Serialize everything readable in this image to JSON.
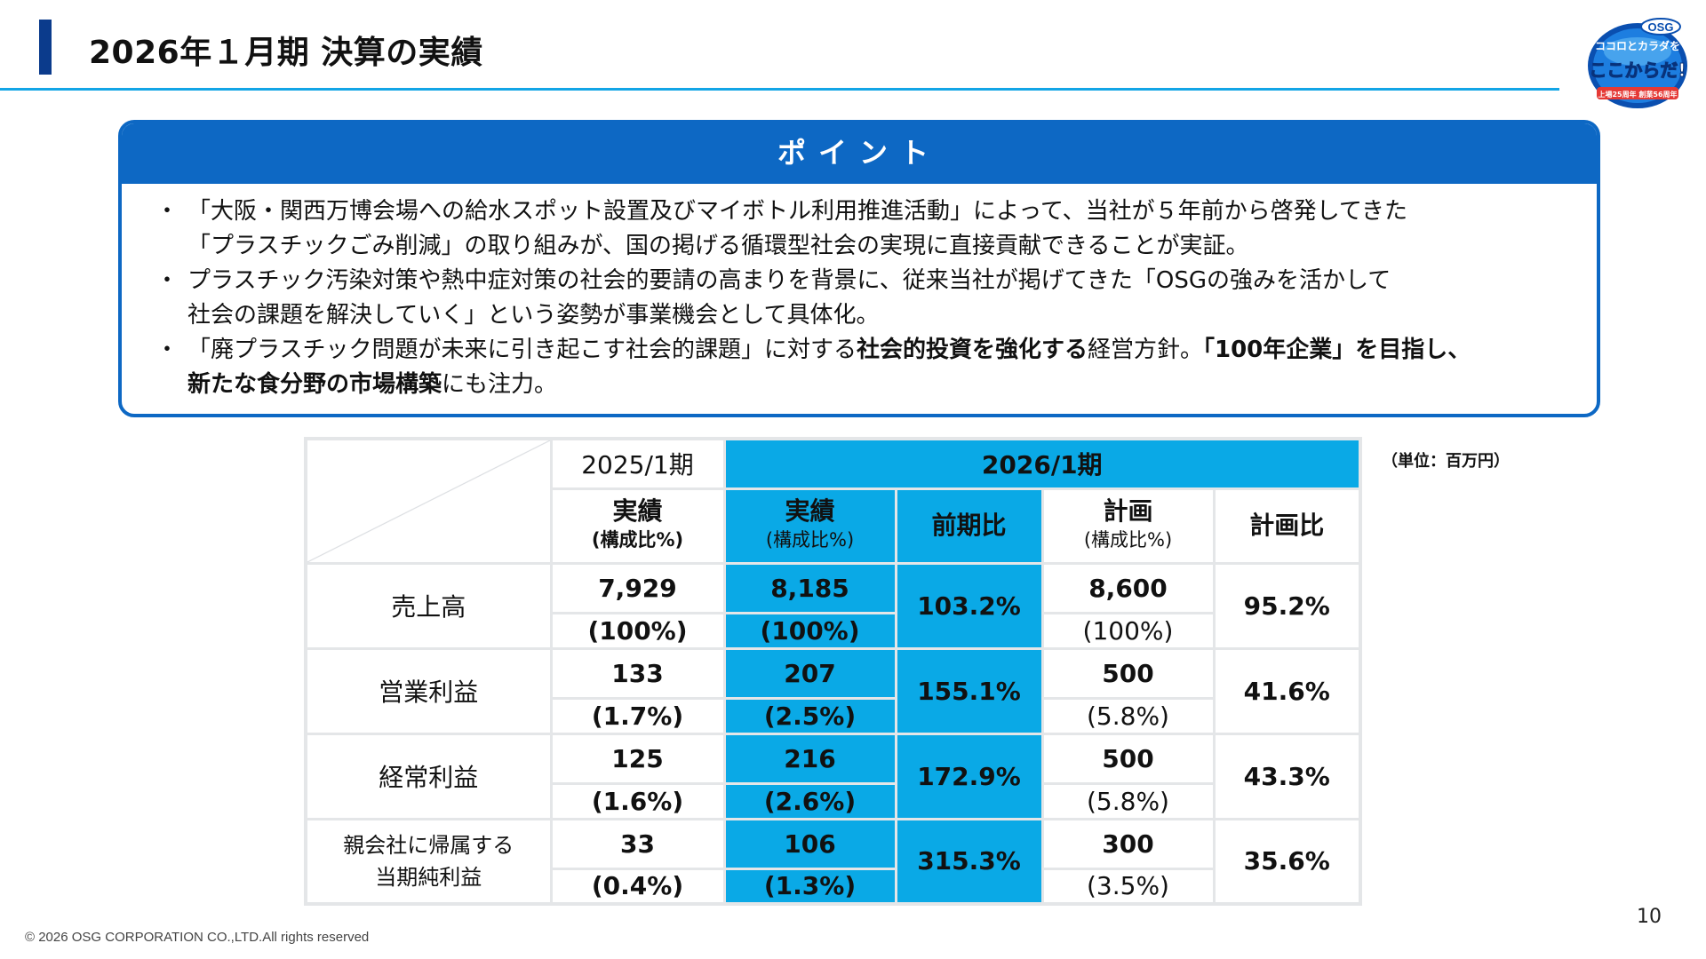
{
  "header": {
    "title": "2026年１月期 決算の実績"
  },
  "point": {
    "heading": "ポイント",
    "bullets": [
      {
        "marker": "・",
        "line1": "「大阪・関西万博会場への給水スポット設置及びマイボトル利用推進活動」によって、当社が５年前から啓発してきた",
        "line2": "「プラスチックごみ削減」の取り組みが、国の掲げる循環型社会の実現に直接貢献できることが実証。"
      },
      {
        "marker": "・",
        "line1": " プラスチック汚染対策や熱中症対策の社会的要請の高まりを背景に、従来当社が掲げてきた「OSGの強みを活かして",
        "line2": " 社会の課題を解決していく」という姿勢が事業機会として具体化。"
      },
      {
        "marker": "・",
        "part1": "「廃プラスチック問題が未来に引き起こす社会的課題」に対する",
        "bold1": "社会的投資を強化する",
        "part2": "経営方針。",
        "bold2": "「100年企業」を目指し、",
        "bold3": "新たな食分野の市場構築",
        "part3": "にも注力。"
      }
    ]
  },
  "table": {
    "unit": "（単位：百万円）",
    "year_prev": "2025/1期",
    "year_curr": "2026/1期",
    "headers": {
      "actual": "実績",
      "ratio": "(構成比%)",
      "yoy": "前期比",
      "plan": "計画",
      "plan_ratio": "(構成比%)",
      "vs_plan": "計画比"
    },
    "rows": [
      {
        "label": "売上高",
        "prev": "7,929",
        "prev_pct": "(100%)",
        "curr": "8,185",
        "curr_pct": "(100%)",
        "yoy": "103.2%",
        "plan": "8,600",
        "plan_pct": "(100%)",
        "vs_plan": "95.2%"
      },
      {
        "label": "営業利益",
        "prev": "133",
        "prev_pct": "(1.7%)",
        "curr": "207",
        "curr_pct": "(2.5%)",
        "yoy": "155.1%",
        "plan": "500",
        "plan_pct": "(5.8%)",
        "vs_plan": "41.6%"
      },
      {
        "label": "経常利益",
        "prev": "125",
        "prev_pct": "(1.6%)",
        "curr": "216",
        "curr_pct": "(2.6%)",
        "yoy": "172.9%",
        "plan": "500",
        "plan_pct": "(5.8%)",
        "vs_plan": "43.3%"
      },
      {
        "label_line1": "親会社に帰属する",
        "label_line2": "当期純利益",
        "prev": "33",
        "prev_pct": "(0.4%)",
        "curr": "106",
        "curr_pct": "(1.3%)",
        "yoy": "315.3%",
        "plan": "300",
        "plan_pct": "(3.5%)",
        "vs_plan": "35.6%"
      }
    ]
  },
  "logo": {
    "brand": "OSG",
    "line1": "ココロとカラダを",
    "line2": "ここからだ!",
    "line3": "上場25周年 創業56周年"
  },
  "footer": {
    "page": "10",
    "copyright": "© 2026 OSG CORPORATION CO.,LTD.All rights reserved"
  },
  "colors": {
    "accent_blue": "#0d68c4",
    "table_blue": "#0aa9e6",
    "rule_cyan": "#13a5e6",
    "title_bar": "#0b3b8c"
  }
}
